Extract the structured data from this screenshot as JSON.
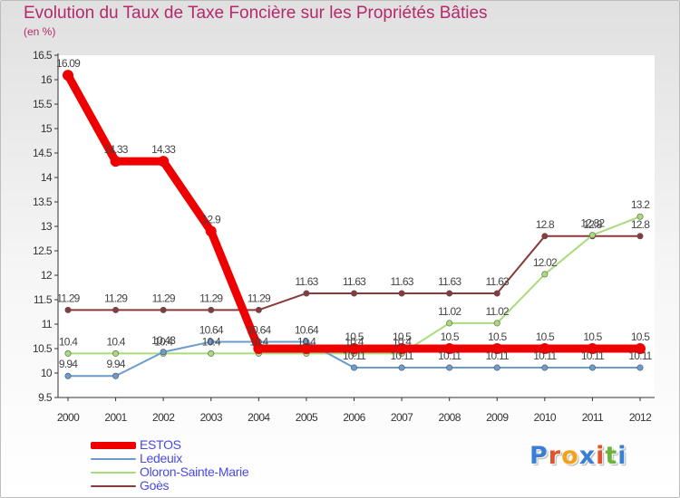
{
  "chart_data": {
    "type": "line",
    "title": "Evolution du Taux de Taxe Foncière sur les Propriétés Bâties",
    "unit_label": "(en %)",
    "x": [
      "2000",
      "2001",
      "2002",
      "2003",
      "2004",
      "2005",
      "2006",
      "2007",
      "2008",
      "2009",
      "2010",
      "2011",
      "2012"
    ],
    "ylim": [
      9.5,
      16.5
    ],
    "yticks": [
      "9.5",
      "10",
      "10.5",
      "11",
      "11.5",
      "12",
      "12.5",
      "13",
      "13.5",
      "14",
      "14.5",
      "15",
      "15.5",
      "16",
      "16.5"
    ],
    "grid": false,
    "legend_position": "bottom-left",
    "series": [
      {
        "name": "ESTOS",
        "color": "#ee0000",
        "values": [
          16.09,
          14.33,
          14.33,
          12.9,
          10.5,
          10.5,
          10.5,
          10.5,
          10.5,
          10.5,
          10.5,
          10.5,
          10.5
        ],
        "labels": [
          "16.09",
          "14.33",
          "14.33",
          "12.9",
          "",
          "",
          "10.5",
          "10.5",
          "10.5",
          "10.5",
          "10.5",
          "10.5",
          "10.5"
        ]
      },
      {
        "name": "Ledeuix",
        "color": "#6a9ccc",
        "values": [
          9.94,
          9.94,
          10.43,
          10.64,
          10.64,
          10.64,
          10.11,
          10.11,
          10.11,
          10.11,
          10.11,
          10.11,
          10.11
        ],
        "labels": [
          "9.94",
          "9.94",
          "10.43",
          "10.64",
          "10.64",
          "10.64",
          "10.11",
          "10.11",
          "10.11",
          "10.11",
          "10.11",
          "10.11",
          "10.11"
        ]
      },
      {
        "name": "Oloron-Sainte-Marie",
        "color": "#a8dc7a",
        "values": [
          10.4,
          10.4,
          10.4,
          10.4,
          10.4,
          10.4,
          10.4,
          10.4,
          11.02,
          11.02,
          12.02,
          12.82,
          13.2
        ],
        "labels": [
          "10.4",
          "10.4",
          "10.4",
          "10.4",
          "10.4",
          "10.4",
          "10.4",
          "10.4",
          "11.02",
          "11.02",
          "12.02",
          "12.82",
          "13.2"
        ]
      },
      {
        "name": "Goès",
        "color": "#8a3a3a",
        "values": [
          11.29,
          11.29,
          11.29,
          11.29,
          11.29,
          11.63,
          11.63,
          11.63,
          11.63,
          11.63,
          12.8,
          12.8,
          12.8
        ],
        "labels": [
          "11.29",
          "11.29",
          "11.29",
          "11.29",
          "11.29",
          "11.63",
          "11.63",
          "11.63",
          "11.63",
          "11.63",
          "12.8",
          "12.8",
          "12.8"
        ]
      }
    ]
  },
  "logo": {
    "text": "Proxiti",
    "colors": [
      "#3a7fd4",
      "#e2532d",
      "#f2a21a",
      "#3a7fd4",
      "#e2532d",
      "#6cb33e",
      "#3a7fd4"
    ]
  }
}
